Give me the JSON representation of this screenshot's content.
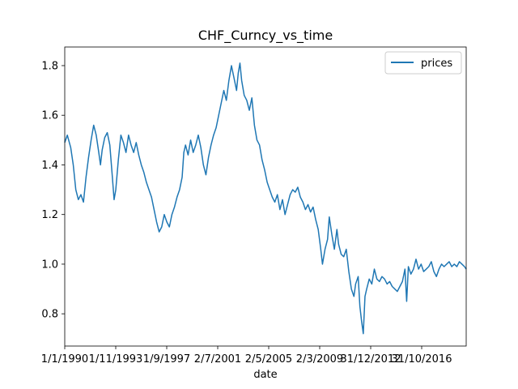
{
  "chart_data": {
    "type": "line",
    "title": "CHF_Curncy_vs_time",
    "xlabel": "date",
    "ylabel": "",
    "ylim": [
      0.67,
      1.875
    ],
    "grid": false,
    "legend_position": "top-right",
    "x_tick_labels": [
      "1/1/1990",
      "1/11/1993",
      "1/9/1997",
      "2/7/2001",
      "2/5/2005",
      "2/3/2009",
      "31/12/2012",
      "31/10/2016"
    ],
    "y_ticks": [
      0.8,
      1.0,
      1.2,
      1.4,
      1.6,
      1.8
    ],
    "y_tick_labels": [
      "0.8",
      "1.0",
      "1.2",
      "1.4",
      "1.6",
      "1.8"
    ],
    "series": [
      {
        "name": "prices",
        "color": "#1f77b4",
        "points": [
          [
            0.0,
            1.49
          ],
          [
            0.15,
            1.52
          ],
          [
            0.35,
            1.47
          ],
          [
            0.5,
            1.4
          ],
          [
            0.65,
            1.3
          ],
          [
            0.8,
            1.26
          ],
          [
            0.95,
            1.28
          ],
          [
            1.1,
            1.25
          ],
          [
            1.25,
            1.35
          ],
          [
            1.4,
            1.43
          ],
          [
            1.55,
            1.5
          ],
          [
            1.7,
            1.56
          ],
          [
            1.85,
            1.52
          ],
          [
            2.0,
            1.45
          ],
          [
            2.1,
            1.4
          ],
          [
            2.2,
            1.46
          ],
          [
            2.35,
            1.51
          ],
          [
            2.5,
            1.53
          ],
          [
            2.65,
            1.48
          ],
          [
            2.8,
            1.35
          ],
          [
            2.9,
            1.26
          ],
          [
            3.0,
            1.3
          ],
          [
            3.15,
            1.42
          ],
          [
            3.3,
            1.52
          ],
          [
            3.45,
            1.49
          ],
          [
            3.6,
            1.45
          ],
          [
            3.75,
            1.52
          ],
          [
            3.9,
            1.48
          ],
          [
            4.05,
            1.45
          ],
          [
            4.2,
            1.49
          ],
          [
            4.35,
            1.44
          ],
          [
            4.5,
            1.4
          ],
          [
            4.65,
            1.37
          ],
          [
            4.8,
            1.33
          ],
          [
            4.95,
            1.3
          ],
          [
            5.1,
            1.27
          ],
          [
            5.25,
            1.22
          ],
          [
            5.4,
            1.17
          ],
          [
            5.55,
            1.13
          ],
          [
            5.7,
            1.15
          ],
          [
            5.85,
            1.2
          ],
          [
            6.0,
            1.17
          ],
          [
            6.15,
            1.15
          ],
          [
            6.3,
            1.2
          ],
          [
            6.45,
            1.23
          ],
          [
            6.6,
            1.27
          ],
          [
            6.75,
            1.3
          ],
          [
            6.9,
            1.35
          ],
          [
            7.0,
            1.45
          ],
          [
            7.1,
            1.48
          ],
          [
            7.25,
            1.44
          ],
          [
            7.4,
            1.5
          ],
          [
            7.55,
            1.45
          ],
          [
            7.7,
            1.48
          ],
          [
            7.85,
            1.52
          ],
          [
            8.0,
            1.47
          ],
          [
            8.15,
            1.4
          ],
          [
            8.3,
            1.36
          ],
          [
            8.45,
            1.43
          ],
          [
            8.6,
            1.48
          ],
          [
            8.75,
            1.52
          ],
          [
            8.9,
            1.55
          ],
          [
            9.05,
            1.6
          ],
          [
            9.2,
            1.65
          ],
          [
            9.35,
            1.7
          ],
          [
            9.5,
            1.66
          ],
          [
            9.65,
            1.74
          ],
          [
            9.8,
            1.8
          ],
          [
            9.95,
            1.75
          ],
          [
            10.1,
            1.7
          ],
          [
            10.2,
            1.77
          ],
          [
            10.3,
            1.81
          ],
          [
            10.4,
            1.74
          ],
          [
            10.55,
            1.68
          ],
          [
            10.7,
            1.66
          ],
          [
            10.85,
            1.62
          ],
          [
            11.0,
            1.67
          ],
          [
            11.15,
            1.56
          ],
          [
            11.3,
            1.5
          ],
          [
            11.45,
            1.48
          ],
          [
            11.6,
            1.42
          ],
          [
            11.75,
            1.38
          ],
          [
            11.9,
            1.33
          ],
          [
            12.05,
            1.3
          ],
          [
            12.2,
            1.27
          ],
          [
            12.35,
            1.25
          ],
          [
            12.5,
            1.28
          ],
          [
            12.65,
            1.22
          ],
          [
            12.8,
            1.26
          ],
          [
            12.95,
            1.2
          ],
          [
            13.1,
            1.24
          ],
          [
            13.25,
            1.28
          ],
          [
            13.4,
            1.3
          ],
          [
            13.55,
            1.29
          ],
          [
            13.7,
            1.31
          ],
          [
            13.85,
            1.27
          ],
          [
            14.0,
            1.25
          ],
          [
            14.15,
            1.22
          ],
          [
            14.3,
            1.24
          ],
          [
            14.45,
            1.21
          ],
          [
            14.6,
            1.23
          ],
          [
            14.75,
            1.18
          ],
          [
            14.9,
            1.14
          ],
          [
            15.05,
            1.06
          ],
          [
            15.15,
            1.0
          ],
          [
            15.3,
            1.06
          ],
          [
            15.45,
            1.1
          ],
          [
            15.55,
            1.19
          ],
          [
            15.7,
            1.12
          ],
          [
            15.85,
            1.06
          ],
          [
            16.0,
            1.14
          ],
          [
            16.1,
            1.08
          ],
          [
            16.25,
            1.04
          ],
          [
            16.4,
            1.03
          ],
          [
            16.55,
            1.06
          ],
          [
            16.7,
            0.97
          ],
          [
            16.85,
            0.9
          ],
          [
            17.0,
            0.87
          ],
          [
            17.1,
            0.92
          ],
          [
            17.25,
            0.95
          ],
          [
            17.35,
            0.83
          ],
          [
            17.45,
            0.77
          ],
          [
            17.55,
            0.72
          ],
          [
            17.65,
            0.87
          ],
          [
            17.75,
            0.9
          ],
          [
            17.9,
            0.94
          ],
          [
            18.05,
            0.92
          ],
          [
            18.2,
            0.98
          ],
          [
            18.35,
            0.94
          ],
          [
            18.5,
            0.93
          ],
          [
            18.65,
            0.95
          ],
          [
            18.8,
            0.94
          ],
          [
            18.95,
            0.92
          ],
          [
            19.1,
            0.93
          ],
          [
            19.25,
            0.91
          ],
          [
            19.4,
            0.9
          ],
          [
            19.55,
            0.89
          ],
          [
            19.7,
            0.91
          ],
          [
            19.85,
            0.93
          ],
          [
            20.0,
            0.98
          ],
          [
            20.1,
            0.85
          ],
          [
            20.2,
            0.99
          ],
          [
            20.35,
            0.96
          ],
          [
            20.5,
            0.98
          ],
          [
            20.65,
            1.02
          ],
          [
            20.8,
            0.98
          ],
          [
            20.95,
            1.0
          ],
          [
            21.1,
            0.97
          ],
          [
            21.25,
            0.98
          ],
          [
            21.4,
            0.99
          ],
          [
            21.55,
            1.01
          ],
          [
            21.7,
            0.97
          ],
          [
            21.85,
            0.95
          ],
          [
            22.0,
            0.98
          ],
          [
            22.15,
            1.0
          ],
          [
            22.3,
            0.99
          ],
          [
            22.45,
            1.0
          ],
          [
            22.6,
            1.01
          ],
          [
            22.75,
            0.99
          ],
          [
            22.9,
            1.0
          ],
          [
            23.05,
            0.99
          ],
          [
            23.2,
            1.01
          ],
          [
            23.35,
            1.0
          ],
          [
            23.5,
            0.99
          ],
          [
            23.6,
            0.98
          ]
        ]
      }
    ]
  }
}
